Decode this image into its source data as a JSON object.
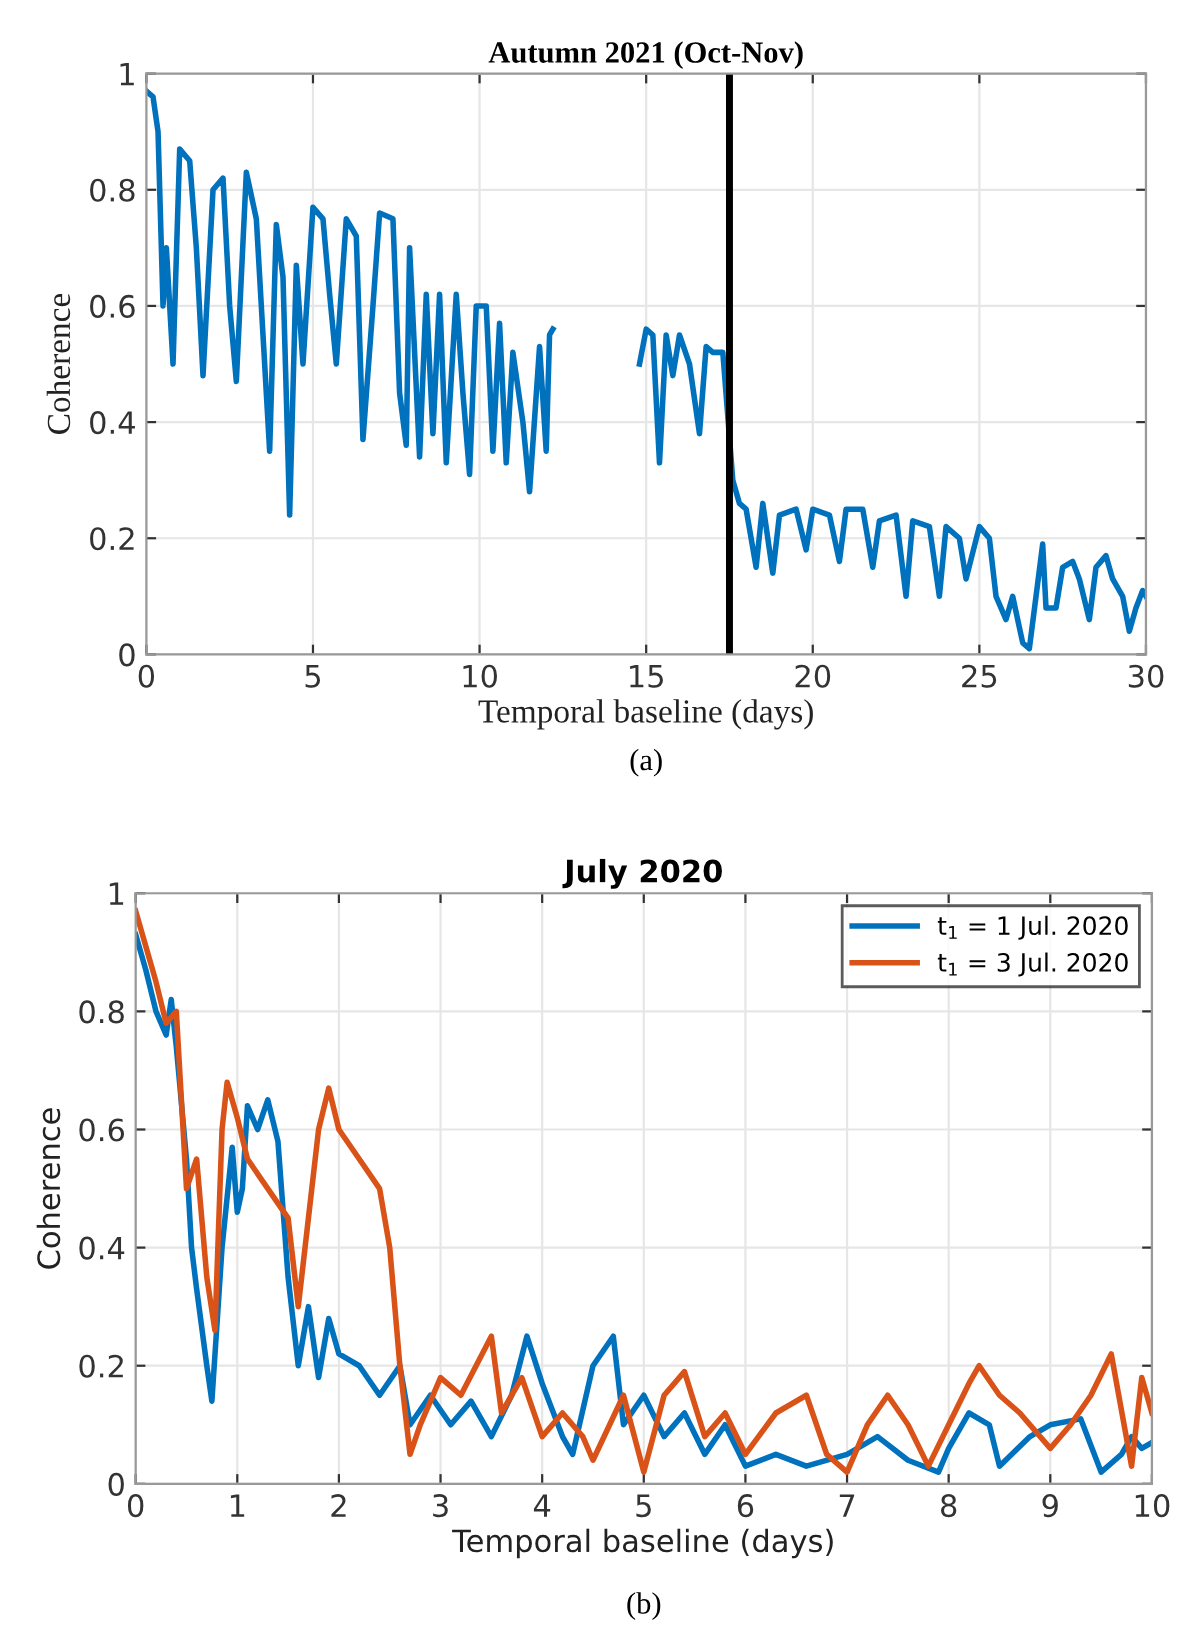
{
  "chart_data": [
    {
      "type": "line",
      "title": "Autumn 2021 (Oct-Nov)",
      "xlabel": "Temporal baseline (days)",
      "ylabel": "Coherence",
      "annotations": [
        "(a)"
      ],
      "xlim": [
        0,
        30
      ],
      "ylim": [
        0,
        1
      ],
      "xticks": [
        0,
        5,
        10,
        15,
        20,
        25,
        30
      ],
      "yticks": [
        0,
        0.2,
        0.4,
        0.6,
        0.8,
        1
      ],
      "grid": true,
      "legend": false,
      "ref_lines": [
        {
          "axis": "x",
          "value": 17.5,
          "color": "#000000"
        }
      ],
      "series": [
        {
          "color": "#0072bd",
          "x": [
            0,
            0.2,
            0.35,
            0.5,
            0.6,
            0.8,
            1.0,
            1.3,
            1.5,
            1.7,
            2.0,
            2.3,
            2.5,
            2.7,
            3.0,
            3.3,
            3.5,
            3.7,
            3.9,
            4.1,
            4.3,
            4.5,
            4.7,
            5.0,
            5.3,
            5.5,
            5.7,
            6.0,
            6.3,
            6.5,
            6.8,
            7.0,
            7.4,
            7.6,
            7.8,
            7.9,
            8.2,
            8.4,
            8.6,
            8.8,
            9.0,
            9.3,
            9.5,
            9.7,
            9.9,
            10.2,
            10.4,
            10.6,
            10.8,
            11.0,
            11.3,
            11.5,
            11.8,
            12.0,
            12.1,
            12.2,
            13.5,
            14.8,
            15.0,
            15.2,
            15.4,
            15.6,
            15.8,
            16.0,
            16.3,
            16.6,
            16.8,
            17.0,
            17.3,
            17.6,
            17.8,
            18.0,
            18.3,
            18.5,
            18.8,
            19.0,
            19.5,
            19.8,
            20.0,
            20.5,
            20.8,
            21.0,
            21.5,
            21.8,
            22.0,
            22.5,
            22.8,
            23.0,
            23.5,
            23.8,
            24.0,
            24.4,
            24.6,
            25.0,
            25.3,
            25.5,
            25.8,
            26.0,
            26.3,
            26.5,
            26.7,
            26.9,
            27.0,
            27.3,
            27.5,
            27.8,
            28.0,
            28.3,
            28.5,
            28.8,
            29.0,
            29.3,
            29.5,
            29.7,
            29.9,
            30
          ],
          "values": [
            0.97,
            0.96,
            0.9,
            0.6,
            0.7,
            0.5,
            0.87,
            0.85,
            0.7,
            0.48,
            0.8,
            0.82,
            0.6,
            0.47,
            0.83,
            0.75,
            0.55,
            0.35,
            0.74,
            0.65,
            0.24,
            0.67,
            0.5,
            0.77,
            0.75,
            0.62,
            0.5,
            0.75,
            0.72,
            0.37,
            0.6,
            0.76,
            0.75,
            0.45,
            0.36,
            0.7,
            0.34,
            0.62,
            0.38,
            0.62,
            0.33,
            0.62,
            0.45,
            0.31,
            0.6,
            0.6,
            0.35,
            0.57,
            0.33,
            0.52,
            0.4,
            0.28,
            0.53,
            0.35,
            0.55,
            0.56,
            null,
            0.5,
            0.56,
            0.55,
            0.33,
            0.55,
            0.48,
            0.55,
            0.5,
            0.38,
            0.53,
            0.52,
            0.52,
            0.3,
            0.26,
            0.25,
            0.15,
            0.26,
            0.14,
            0.24,
            0.25,
            0.18,
            0.25,
            0.24,
            0.16,
            0.25,
            0.25,
            0.15,
            0.23,
            0.24,
            0.1,
            0.23,
            0.22,
            0.1,
            0.22,
            0.2,
            0.13,
            0.22,
            0.2,
            0.1,
            0.06,
            0.1,
            0.02,
            0.01,
            0.1,
            0.19,
            0.08,
            0.08,
            0.15,
            0.16,
            0.13,
            0.06,
            0.15,
            0.17,
            0.13,
            0.1,
            0.04,
            0.08,
            0.11,
            0.1
          ]
        }
      ]
    },
    {
      "type": "line",
      "title": "July 2020",
      "xlabel": "Temporal baseline (days)",
      "ylabel": "Coherence",
      "annotations": [
        "(b)"
      ],
      "xlim": [
        0,
        10
      ],
      "ylim": [
        0,
        1
      ],
      "xticks": [
        0,
        1,
        2,
        3,
        4,
        5,
        6,
        7,
        8,
        9,
        10
      ],
      "yticks": [
        0,
        0.2,
        0.4,
        0.6,
        0.8,
        1
      ],
      "grid": true,
      "legend": "top right",
      "series": [
        {
          "name": "t$_{1}$ = 1 Jul. 2020",
          "color": "#0072bd",
          "x": [
            0,
            0.1,
            0.2,
            0.3,
            0.35,
            0.4,
            0.5,
            0.55,
            0.6,
            0.7,
            0.75,
            0.85,
            0.95,
            1.0,
            1.05,
            1.1,
            1.2,
            1.3,
            1.4,
            1.5,
            1.6,
            1.7,
            1.8,
            1.9,
            2.0,
            2.2,
            2.4,
            2.6,
            2.7,
            2.9,
            3.1,
            3.3,
            3.5,
            3.7,
            3.85,
            4.0,
            4.2,
            4.3,
            4.5,
            4.7,
            4.8,
            5.0,
            5.2,
            5.4,
            5.6,
            5.8,
            6.0,
            6.3,
            6.6,
            7.0,
            7.3,
            7.6,
            7.9,
            8.0,
            8.2,
            8.4,
            8.5,
            8.8,
            9.0,
            9.3,
            9.5,
            9.7,
            9.8,
            9.9,
            10.0
          ],
          "values": [
            0.93,
            0.87,
            0.8,
            0.76,
            0.82,
            0.74,
            0.55,
            0.4,
            0.33,
            0.2,
            0.14,
            0.4,
            0.57,
            0.46,
            0.5,
            0.64,
            0.6,
            0.65,
            0.58,
            0.35,
            0.2,
            0.3,
            0.18,
            0.28,
            0.22,
            0.2,
            0.15,
            0.2,
            0.1,
            0.15,
            0.1,
            0.14,
            0.08,
            0.15,
            0.25,
            0.17,
            0.08,
            0.05,
            0.2,
            0.25,
            0.1,
            0.15,
            0.08,
            0.12,
            0.05,
            0.1,
            0.03,
            0.05,
            0.03,
            0.05,
            0.08,
            0.04,
            0.02,
            0.06,
            0.12,
            0.1,
            0.03,
            0.08,
            0.1,
            0.11,
            0.02,
            0.05,
            0.08,
            0.06,
            0.07
          ]
        },
        {
          "name": "t$_{1}$ = 3 Jul. 2020",
          "color": "#d95319",
          "x": [
            0,
            0.2,
            0.3,
            0.4,
            0.5,
            0.6,
            0.7,
            0.78,
            0.85,
            0.9,
            1.0,
            1.1,
            1.3,
            1.5,
            1.6,
            1.7,
            1.8,
            1.9,
            2.0,
            2.2,
            2.4,
            2.5,
            2.6,
            2.7,
            2.8,
            3.0,
            3.2,
            3.5,
            3.6,
            3.8,
            4.0,
            4.2,
            4.4,
            4.5,
            4.8,
            5.0,
            5.2,
            5.4,
            5.6,
            5.8,
            6.0,
            6.3,
            6.6,
            6.8,
            7.0,
            7.2,
            7.4,
            7.6,
            7.8,
            8.0,
            8.2,
            8.3,
            8.5,
            8.7,
            9.0,
            9.2,
            9.4,
            9.6,
            9.8,
            9.9,
            10.0
          ],
          "values": [
            0.97,
            0.85,
            0.78,
            0.8,
            0.5,
            0.55,
            0.35,
            0.26,
            0.6,
            0.68,
            0.62,
            0.55,
            0.5,
            0.45,
            0.3,
            0.45,
            0.6,
            0.67,
            0.6,
            0.55,
            0.5,
            0.4,
            0.2,
            0.05,
            0.1,
            0.18,
            0.15,
            0.25,
            0.12,
            0.18,
            0.08,
            0.12,
            0.08,
            0.04,
            0.15,
            0.02,
            0.15,
            0.19,
            0.08,
            0.12,
            0.05,
            0.12,
            0.15,
            0.05,
            0.02,
            0.1,
            0.15,
            0.1,
            0.03,
            0.1,
            0.17,
            0.2,
            0.15,
            0.12,
            0.06,
            0.1,
            0.15,
            0.22,
            0.03,
            0.18,
            0.12
          ]
        }
      ]
    }
  ]
}
